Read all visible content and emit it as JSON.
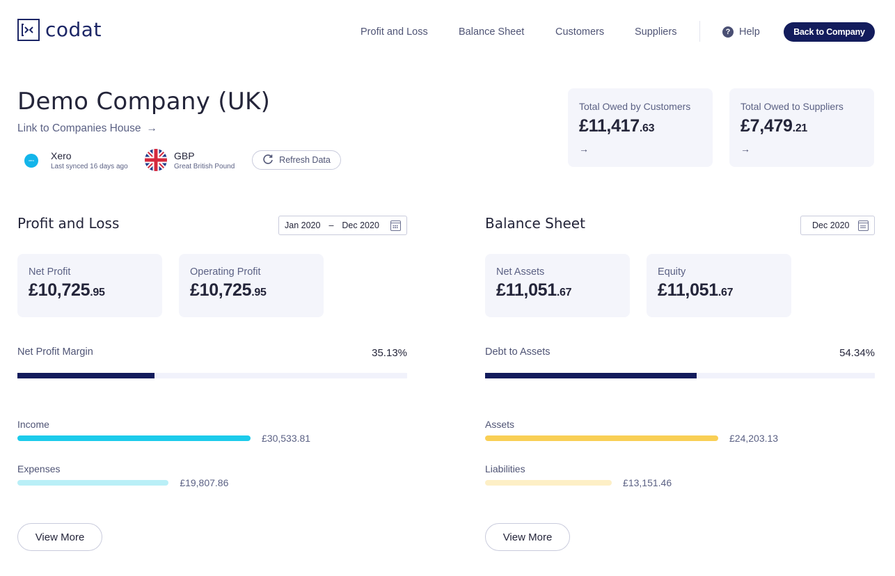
{
  "brand": {
    "name": "codat"
  },
  "nav": {
    "items": [
      "Profit and Loss",
      "Balance Sheet",
      "Customers",
      "Suppliers"
    ],
    "help": "Help",
    "back_button": "Back to Company"
  },
  "company": {
    "name": "Demo Company (UK)",
    "link": "Link to Companies House",
    "source": {
      "title": "Xero",
      "subtitle": "Last synced 16 days ago",
      "icon": "xero-icon"
    },
    "currency": {
      "title": "GBP",
      "subtitle": "Great British Pound",
      "icon": "uk-flag-icon"
    },
    "refresh": "Refresh Data"
  },
  "owed": {
    "customers": {
      "label": "Total Owed by Customers",
      "whole": "£11,417",
      "cents": ".63"
    },
    "suppliers": {
      "label": "Total Owed to Suppliers",
      "whole": "£7,479",
      "cents": ".21"
    }
  },
  "pnl": {
    "title": "Profit and Loss",
    "date_from": "Jan 2020",
    "date_sep": "–",
    "date_to": "Dec 2020",
    "cards": [
      {
        "label": "Net Profit",
        "whole": "£10,725",
        "cents": ".95"
      },
      {
        "label": "Operating Profit",
        "whole": "£10,725",
        "cents": ".95"
      }
    ],
    "ratio": {
      "label": "Net Profit Margin",
      "value": "35.13%",
      "fraction": 0.3513
    },
    "bars": [
      {
        "label": "Income",
        "value": "£30,533.81",
        "amount": 30533.81,
        "color": "#1ccbeb"
      },
      {
        "label": "Expenses",
        "value": "£19,807.86",
        "amount": 19807.86,
        "color": "#b9eff7"
      }
    ],
    "view_more": "View More"
  },
  "bs": {
    "title": "Balance Sheet",
    "date": "Dec 2020",
    "cards": [
      {
        "label": "Net Assets",
        "whole": "£11,051",
        "cents": ".67"
      },
      {
        "label": "Equity",
        "whole": "£11,051",
        "cents": ".67"
      }
    ],
    "ratio": {
      "label": "Debt to Assets",
      "value": "54.34%",
      "fraction": 0.5434
    },
    "bars": [
      {
        "label": "Assets",
        "value": "£24,203.13",
        "amount": 24203.13,
        "color": "#f9cf55"
      },
      {
        "label": "Liabilities",
        "value": "£13,151.46",
        "amount": 13151.46,
        "color": "#fdefc6"
      }
    ],
    "view_more": "View More"
  }
}
